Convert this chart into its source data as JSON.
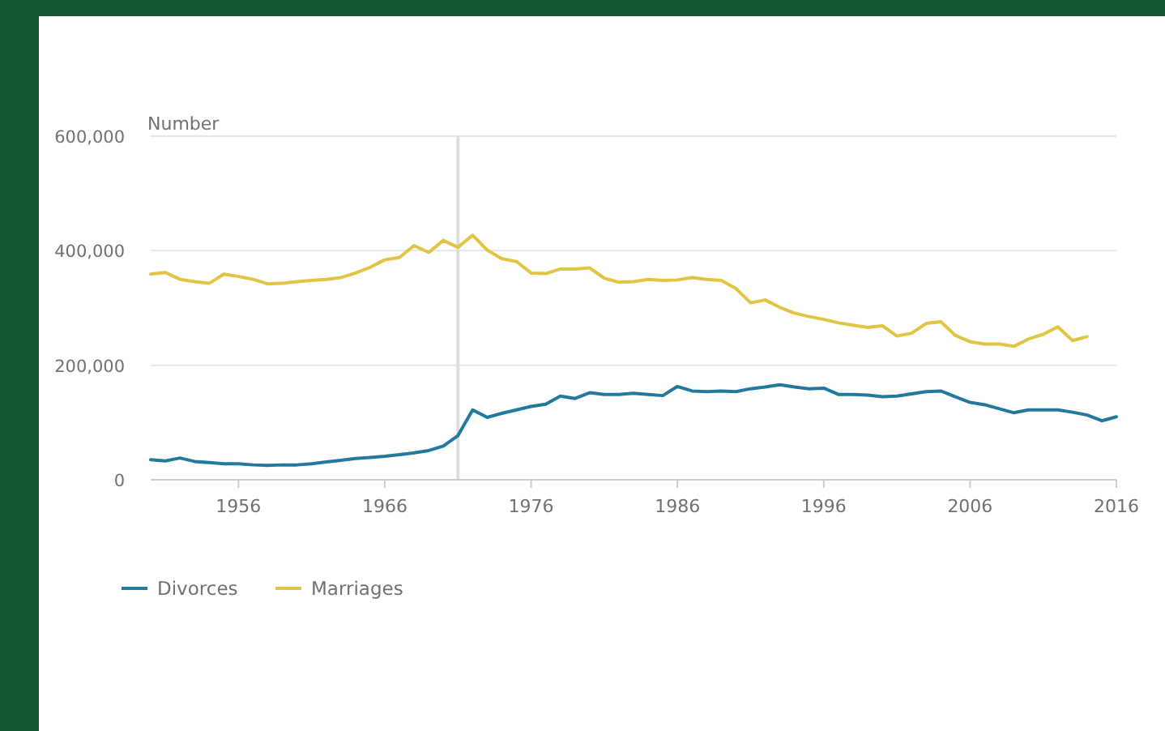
{
  "chart_data": {
    "type": "line",
    "ylabel": "Number",
    "x": [
      1950,
      1951,
      1952,
      1953,
      1954,
      1955,
      1956,
      1957,
      1958,
      1959,
      1960,
      1961,
      1962,
      1963,
      1964,
      1965,
      1966,
      1967,
      1968,
      1969,
      1970,
      1971,
      1972,
      1973,
      1974,
      1975,
      1976,
      1977,
      1978,
      1979,
      1980,
      1981,
      1982,
      1983,
      1984,
      1985,
      1986,
      1987,
      1988,
      1989,
      1990,
      1991,
      1992,
      1993,
      1994,
      1995,
      1996,
      1997,
      1998,
      1999,
      2000,
      2001,
      2002,
      2003,
      2004,
      2005,
      2006,
      2007,
      2008,
      2009,
      2010,
      2011,
      2012,
      2013,
      2014,
      2015,
      2016
    ],
    "series": [
      {
        "name": "Divorces",
        "color": "#23799d",
        "values": [
          35000,
          33000,
          38000,
          32000,
          30000,
          28000,
          28000,
          26000,
          25000,
          26000,
          26000,
          28000,
          31000,
          34000,
          37000,
          39000,
          41000,
          44000,
          47000,
          51000,
          59000,
          77000,
          122000,
          109000,
          116000,
          122000,
          128000,
          132000,
          146000,
          142000,
          152000,
          149000,
          149000,
          151000,
          149000,
          147000,
          163000,
          155000,
          154000,
          155000,
          154000,
          159000,
          162000,
          166000,
          162000,
          159000,
          160000,
          149000,
          149000,
          148000,
          145000,
          146000,
          150000,
          154000,
          155000,
          145000,
          135000,
          131000,
          124000,
          117000,
          122000,
          122000,
          122000,
          118000,
          113000,
          103000,
          110000
        ]
      },
      {
        "name": "Marriages",
        "color": "#e1c444",
        "values": [
          359000,
          362000,
          350000,
          346000,
          343000,
          359000,
          355000,
          350000,
          342000,
          343000,
          346000,
          348000,
          350000,
          353000,
          361000,
          371000,
          384000,
          388000,
          409000,
          397000,
          418000,
          406000,
          427000,
          401000,
          386000,
          381000,
          361000,
          360000,
          368000,
          368000,
          370000,
          352000,
          345000,
          346000,
          350000,
          348000,
          349000,
          353000,
          350000,
          348000,
          334000,
          309000,
          314000,
          301000,
          291000,
          285000,
          280000,
          274000,
          270000,
          266000,
          269000,
          251000,
          256000,
          273000,
          276000,
          252000,
          241000,
          237000,
          237000,
          233000,
          246000,
          254000,
          267000,
          243000,
          250000,
          null,
          null
        ]
      }
    ],
    "xlim": [
      1950,
      2016
    ],
    "xticks": [
      1956,
      1966,
      1976,
      1986,
      1996,
      2006,
      2016
    ],
    "ylim": [
      0,
      600000
    ],
    "yticks": [
      {
        "value": 0,
        "label": "0"
      },
      {
        "value": 200000,
        "label": "200,000"
      },
      {
        "value": 400000,
        "label": "400,000"
      },
      {
        "value": 600000,
        "label": "600,000"
      }
    ],
    "grid": "y",
    "legend": "bottom left",
    "line_style": "solid",
    "ref_lines": [
      {
        "axis": "x",
        "value": 1971,
        "color": "#dddddd"
      }
    ]
  }
}
